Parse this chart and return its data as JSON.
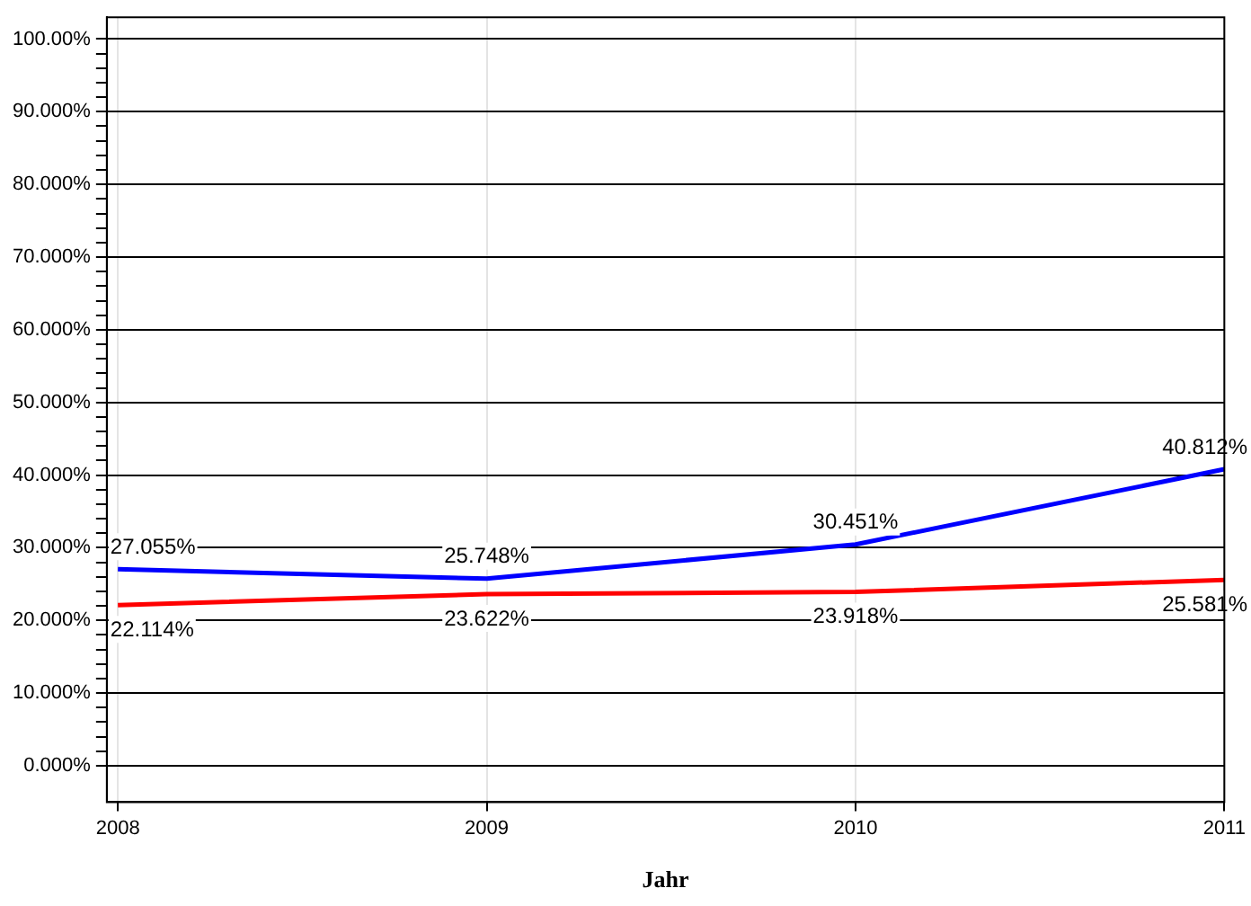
{
  "chart_data": {
    "type": "line",
    "xlabel": "Jahr",
    "x": [
      2008,
      2009,
      2010,
      2011
    ],
    "xlim": [
      2007.97,
      2011
    ],
    "xticks": [
      2008,
      2009,
      2010,
      2011
    ],
    "ylim": [
      -5,
      103
    ],
    "yticks": [
      {
        "value": 0,
        "label": "0.000%"
      },
      {
        "value": 2,
        "label": null
      },
      {
        "value": 4,
        "label": null
      },
      {
        "value": 6,
        "label": null
      },
      {
        "value": 8,
        "label": null
      },
      {
        "value": 10,
        "label": "10.000%"
      },
      {
        "value": 12,
        "label": null
      },
      {
        "value": 14,
        "label": null
      },
      {
        "value": 16,
        "label": null
      },
      {
        "value": 18,
        "label": null
      },
      {
        "value": 20,
        "label": "20.000%"
      },
      {
        "value": 22,
        "label": null
      },
      {
        "value": 24,
        "label": null
      },
      {
        "value": 26,
        "label": null
      },
      {
        "value": 28,
        "label": null
      },
      {
        "value": 30,
        "label": "30.000%"
      },
      {
        "value": 32,
        "label": null
      },
      {
        "value": 34,
        "label": null
      },
      {
        "value": 36,
        "label": null
      },
      {
        "value": 38,
        "label": null
      },
      {
        "value": 40,
        "label": "40.000%"
      },
      {
        "value": 42,
        "label": null
      },
      {
        "value": 44,
        "label": null
      },
      {
        "value": 46,
        "label": null
      },
      {
        "value": 48,
        "label": null
      },
      {
        "value": 50,
        "label": "50.000%"
      },
      {
        "value": 52,
        "label": null
      },
      {
        "value": 54,
        "label": null
      },
      {
        "value": 56,
        "label": null
      },
      {
        "value": 58,
        "label": null
      },
      {
        "value": 60,
        "label": "60.000%"
      },
      {
        "value": 62,
        "label": null
      },
      {
        "value": 64,
        "label": null
      },
      {
        "value": 66,
        "label": null
      },
      {
        "value": 68,
        "label": null
      },
      {
        "value": 70,
        "label": "70.000%"
      },
      {
        "value": 72,
        "label": null
      },
      {
        "value": 74,
        "label": null
      },
      {
        "value": 76,
        "label": null
      },
      {
        "value": 78,
        "label": null
      },
      {
        "value": 80,
        "label": "80.000%"
      },
      {
        "value": 82,
        "label": null
      },
      {
        "value": 84,
        "label": null
      },
      {
        "value": 86,
        "label": null
      },
      {
        "value": 88,
        "label": null
      },
      {
        "value": 90,
        "label": "90.000%"
      },
      {
        "value": 92,
        "label": null
      },
      {
        "value": 94,
        "label": null
      },
      {
        "value": 96,
        "label": null
      },
      {
        "value": 98,
        "label": null
      },
      {
        "value": 100,
        "label": "100.00%"
      }
    ],
    "grid": true,
    "marker": "none",
    "line_style": "solid",
    "series": [
      {
        "color": "#0000ff",
        "values": [
          27.055,
          25.748,
          30.451,
          40.812
        ],
        "value_labels": [
          "27.055%",
          "25.748%",
          "30.451%",
          "40.812%"
        ]
      },
      {
        "color": "#ff0000",
        "values": [
          22.114,
          23.622,
          23.918,
          25.581
        ],
        "value_labels": [
          "22.114%",
          "23.622%",
          "23.918%",
          "25.581%"
        ]
      }
    ]
  }
}
